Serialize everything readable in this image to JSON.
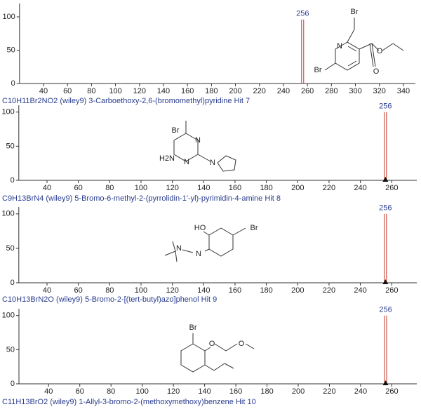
{
  "chart_data": [
    {
      "type": "spectrum",
      "caption": "C10H11Br2NO2 (wiley9) 3-Carboethoxy-2,6-(bromomethyl)pyridine Hit 7",
      "x": [
        256
      ],
      "values": [
        96
      ],
      "color": "#c0392b",
      "xlim": [
        20,
        350
      ],
      "xticks": [
        40,
        60,
        80,
        100,
        120,
        140,
        160,
        180,
        200,
        220,
        240,
        260,
        280,
        300,
        320,
        340
      ],
      "ylim": [
        0,
        120
      ],
      "yticks": [
        0,
        50,
        100
      ],
      "peak_marker": false,
      "atom_labels": [
        "Br",
        "N",
        "Br",
        "O",
        "O"
      ]
    },
    {
      "type": "spectrum",
      "caption": "C9H13BrN4 (wiley9) 5-Bromo-6-methyl-2-(pyrrolidin-1'-yl)-pyrimidin-4-amine Hit 8",
      "x": [
        256
      ],
      "values": [
        100
      ],
      "color": "#c0392b",
      "xlim": [
        22,
        276
      ],
      "xticks": [
        40,
        60,
        80,
        100,
        120,
        140,
        160,
        180,
        200,
        220,
        240,
        260
      ],
      "ylim": [
        0,
        110
      ],
      "yticks": [
        0,
        50,
        100
      ],
      "peak_marker": true,
      "atom_labels": [
        "Br",
        "N",
        "N",
        "H2N",
        "N"
      ]
    },
    {
      "type": "spectrum",
      "caption": "C10H13BrN2O (wiley9) 5-Bromo-2-[(tert-butyl)azo]phenol Hit 9",
      "x": [
        256
      ],
      "values": [
        100
      ],
      "color": "#c0392b",
      "xlim": [
        22,
        276
      ],
      "xticks": [
        40,
        60,
        80,
        100,
        120,
        140,
        160,
        180,
        200,
        220,
        240,
        260
      ],
      "ylim": [
        0,
        110
      ],
      "yticks": [
        0,
        50,
        100
      ],
      "peak_marker": true,
      "atom_labels": [
        "HO",
        "Br",
        "N",
        "N"
      ]
    },
    {
      "type": "spectrum",
      "caption": "C11H13BrO2 (wiley9) 1-Allyl-3-bromo-2-(methoxymethoxy)benzene Hit 10",
      "x": [
        256
      ],
      "values": [
        100
      ],
      "color": "#c0392b",
      "xlim": [
        21,
        276
      ],
      "xticks": [
        40,
        60,
        80,
        100,
        120,
        140,
        160,
        180,
        200,
        220,
        240,
        260
      ],
      "ylim": [
        0,
        110
      ],
      "yticks": [
        0,
        50,
        100
      ],
      "peak_marker": true,
      "atom_labels": [
        "Br",
        "O",
        "O"
      ]
    }
  ]
}
